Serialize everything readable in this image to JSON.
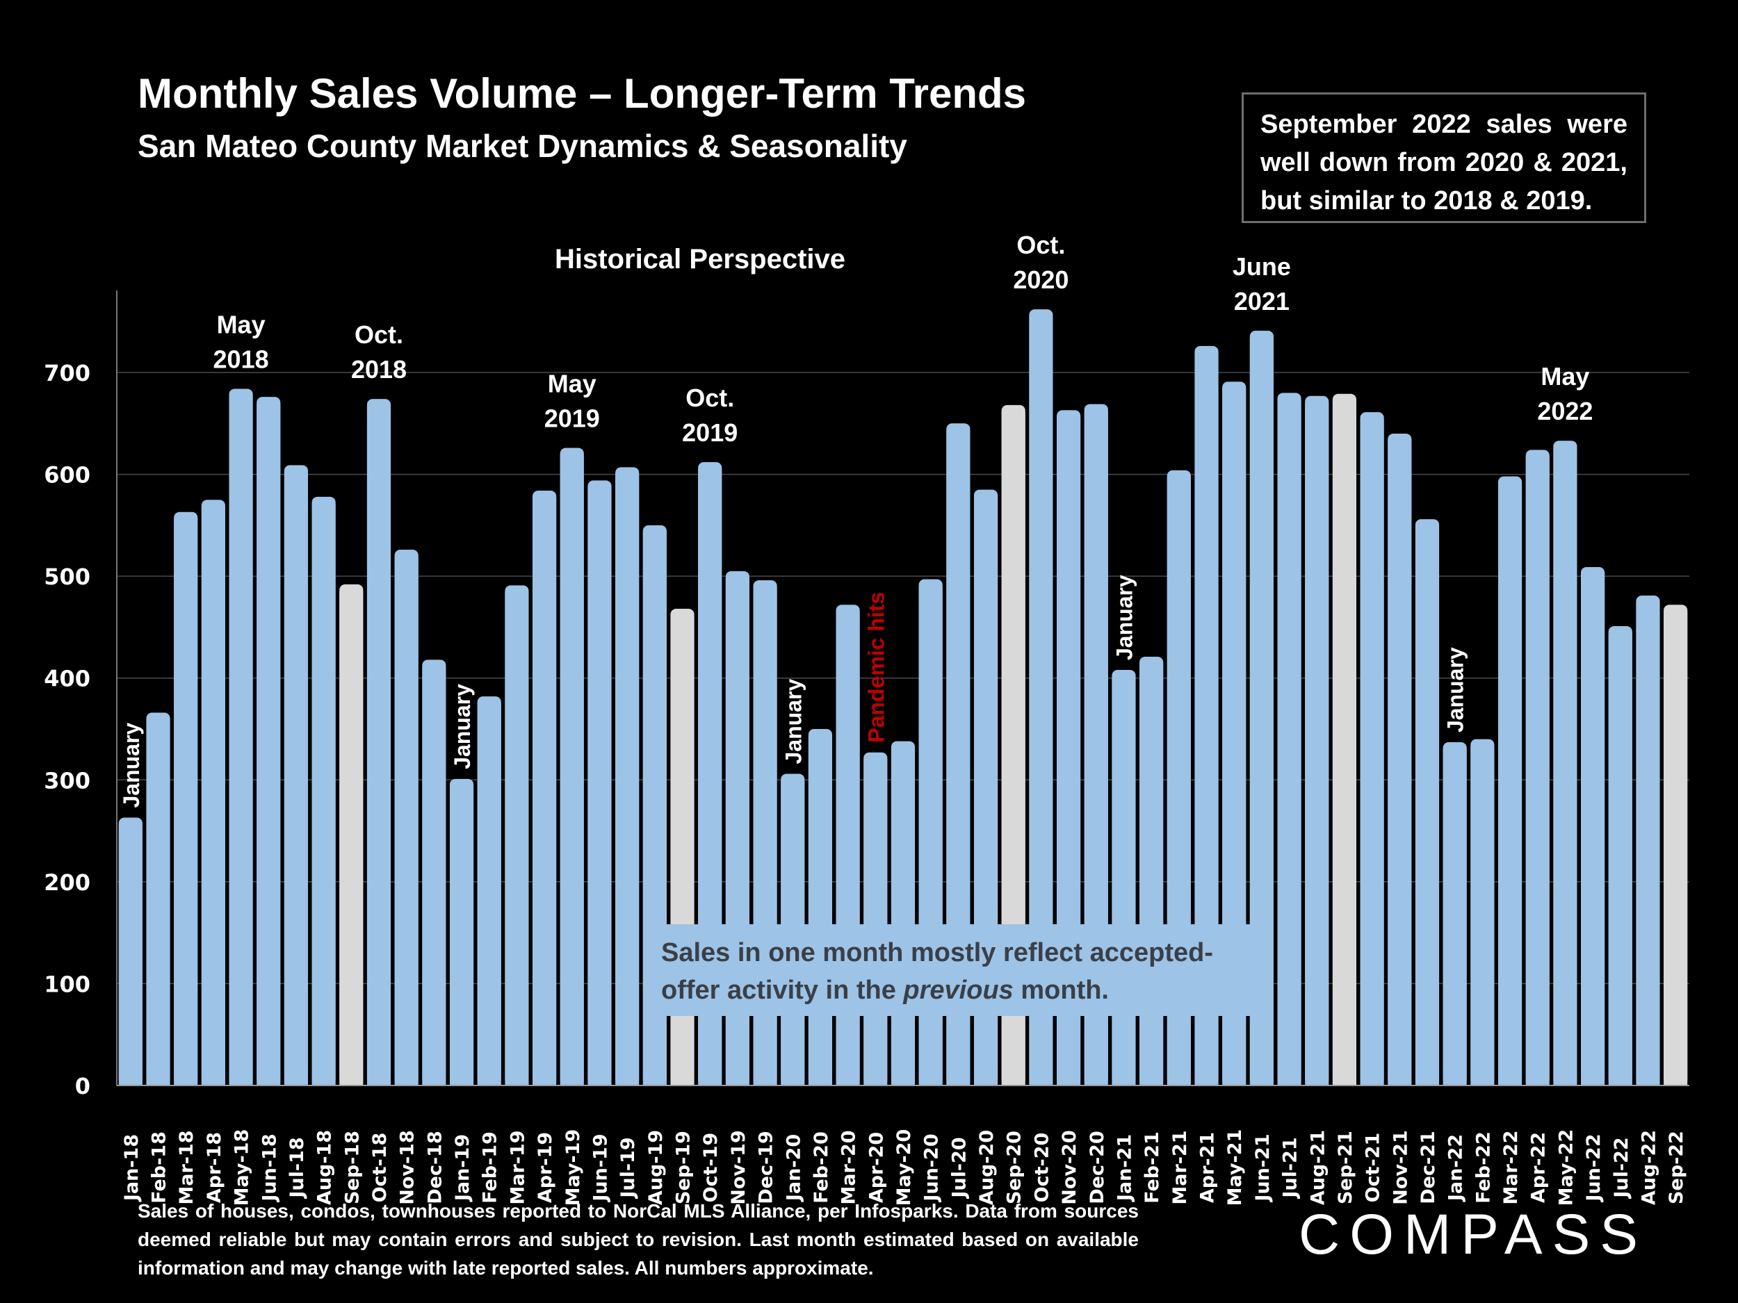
{
  "header": {
    "title": "Monthly Sales Volume – Longer-Term Trends",
    "subtitle": "San Mateo County Market Dynamics & Seasonality"
  },
  "callout": "September 2022 sales were well down from 2020 & 2021, but similar to 2018 & 2019.",
  "note": {
    "part1": "Sales in one month mostly reflect accepted-offer activity in the ",
    "italic": "previous",
    "part2": " month."
  },
  "footnote": "Sales of houses, condos, townhouses reported to NorCal MLS Alliance, per Infosparks. Data from sources deemed reliable but may contain errors and subject to revision. Last month estimated based on available information and may change with late reported sales. All numbers approximate.",
  "logo": "COMPASS",
  "colors": {
    "bar": "#9dc3e6",
    "highlight_bar": "#d9d9d9",
    "gridline": "#4a4a4a",
    "pandemic": "#c00000"
  },
  "chart_data": {
    "type": "bar",
    "title": "Historical Perspective",
    "xlabel": "",
    "ylabel": "",
    "ylim": [
      0,
      780
    ],
    "yticks": [
      0,
      100,
      200,
      300,
      400,
      500,
      600,
      700
    ],
    "grid": true,
    "categories": [
      "Jan-18",
      "Feb-18",
      "Mar-18",
      "Apr-18",
      "May-18",
      "Jun-18",
      "Jul-18",
      "Aug-18",
      "Sep-18",
      "Oct-18",
      "Nov-18",
      "Dec-18",
      "Jan-19",
      "Feb-19",
      "Mar-19",
      "Apr-19",
      "May-19",
      "Jun-19",
      "Jul-19",
      "Aug-19",
      "Sep-19",
      "Oct-19",
      "Nov-19",
      "Dec-19",
      "Jan-20",
      "Feb-20",
      "Mar-20",
      "Apr-20",
      "May-20",
      "Jun-20",
      "Jul-20",
      "Aug-20",
      "Sep-20",
      "Oct-20",
      "Nov-20",
      "Dec-20",
      "Jan-21",
      "Feb-21",
      "Mar-21",
      "Apr-21",
      "May-21",
      "Jun-21",
      "Jul-21",
      "Aug-21",
      "Sep-21",
      "Oct-21",
      "Nov-21",
      "Dec-21",
      "Jan-22",
      "Feb-22",
      "Mar-22",
      "Apr-22",
      "May-22",
      "Jun-22",
      "Jul-22",
      "Aug-22",
      "Sep-22"
    ],
    "values": [
      263,
      366,
      563,
      575,
      684,
      676,
      609,
      578,
      492,
      674,
      526,
      418,
      301,
      382,
      491,
      584,
      626,
      594,
      607,
      550,
      468,
      612,
      505,
      496,
      306,
      350,
      472,
      327,
      338,
      497,
      650,
      585,
      668,
      762,
      663,
      669,
      408,
      421,
      604,
      726,
      691,
      741,
      680,
      677,
      679,
      661,
      640,
      556,
      337,
      340,
      598,
      624,
      633,
      509,
      451,
      481,
      472
    ],
    "highlighted": [
      "Sep-18",
      "Sep-19",
      "Sep-20",
      "Sep-21",
      "Sep-22"
    ],
    "annotations": [
      {
        "category": "May-18",
        "text": [
          "May",
          "2018"
        ]
      },
      {
        "category": "Oct-18",
        "text": [
          "Oct.",
          "2018"
        ]
      },
      {
        "category": "May-19",
        "text": [
          "May",
          "2019"
        ]
      },
      {
        "category": "Oct-19",
        "text": [
          "Oct.",
          "2019"
        ]
      },
      {
        "category": "Oct-20",
        "text": [
          "Oct.",
          "2020"
        ]
      },
      {
        "category": "Jun-21",
        "text": [
          "June",
          "2021"
        ]
      },
      {
        "category": "May-22",
        "text": [
          "May",
          "2022"
        ]
      }
    ],
    "vertical_annotations": [
      {
        "category": "Jan-18",
        "text": "January",
        "color": "#ffffff"
      },
      {
        "category": "Jan-19",
        "text": "January",
        "color": "#ffffff"
      },
      {
        "category": "Jan-20",
        "text": "January",
        "color": "#ffffff"
      },
      {
        "category": "Apr-20",
        "text": "Pandemic hits",
        "color": "#c00000"
      },
      {
        "category": "Jan-21",
        "text": "January",
        "color": "#ffffff"
      },
      {
        "category": "Jan-22",
        "text": "January",
        "color": "#ffffff"
      }
    ]
  }
}
